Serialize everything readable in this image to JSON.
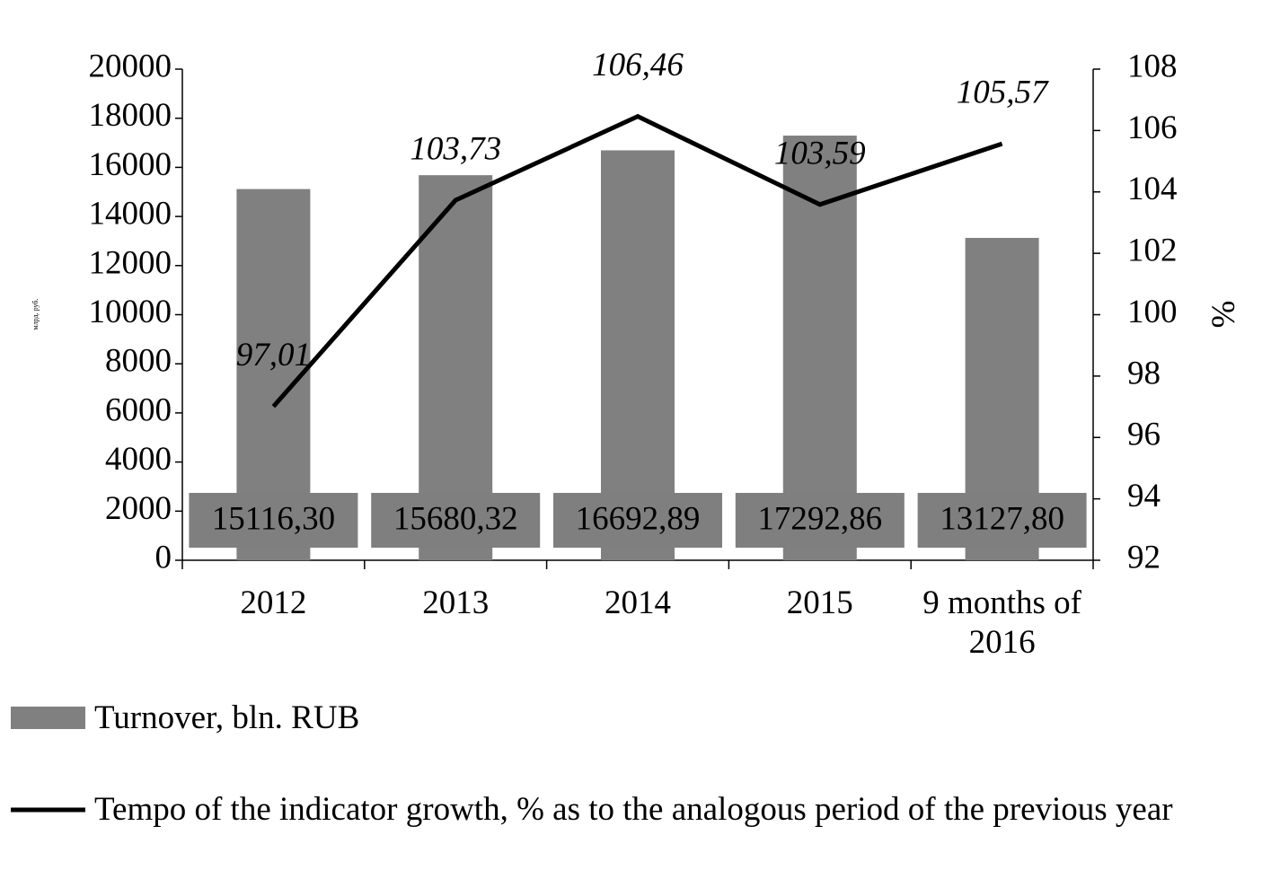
{
  "chart_data": {
    "type": "bar",
    "categories": [
      "2012",
      "2013",
      "2014",
      "2015",
      "9 months of 2016"
    ],
    "y_label": "млрд. руб.",
    "y2_label": "%",
    "ylim": [
      0,
      20000
    ],
    "yticks": [
      0,
      2000,
      4000,
      6000,
      8000,
      10000,
      12000,
      14000,
      16000,
      18000,
      20000
    ],
    "y2lim": [
      92,
      108
    ],
    "y2ticks": [
      92,
      94,
      96,
      98,
      100,
      102,
      104,
      106,
      108
    ],
    "legend": "bottom",
    "series": [
      {
        "name": "Turnover, bln. RUB",
        "type": "bar",
        "color": "#808080",
        "values": [
          15116.3,
          15680.32,
          16692.89,
          17292.86,
          13127.8
        ],
        "value_labels": [
          "15116,30",
          "15680,32",
          "16692,89",
          "17292,86",
          "13127,80"
        ]
      },
      {
        "name": "Tempo of the indicator growth, % as to the analogous period of the previous year",
        "type": "line",
        "axis": "y2",
        "color": "#000000",
        "values": [
          97.01,
          103.73,
          106.46,
          103.59,
          105.57
        ],
        "value_labels": [
          "97,01",
          "103,73",
          "106,46",
          "103,59",
          "105,57"
        ]
      }
    ]
  }
}
